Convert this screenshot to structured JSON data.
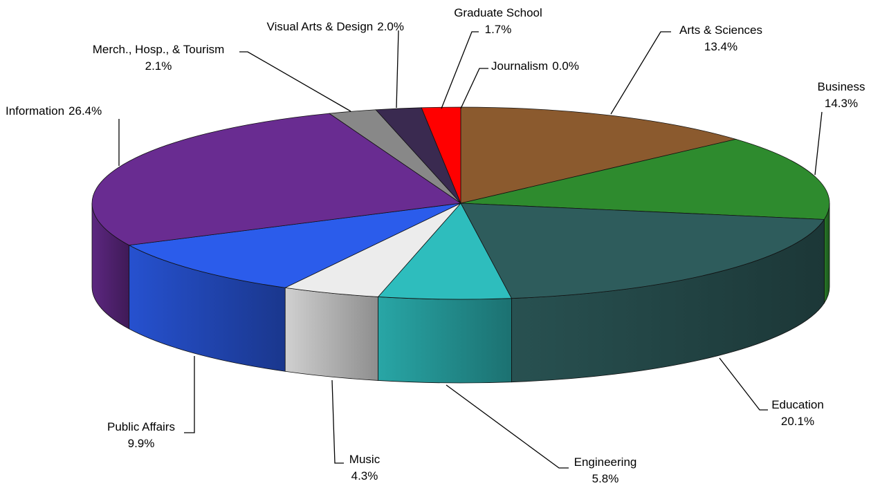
{
  "chart_data": {
    "type": "pie3d",
    "labels": [
      "Journalism",
      "Arts & Sciences",
      "Business",
      "Education",
      "Engineering",
      "Music",
      "Public Affairs",
      "Information",
      "Merch., Hosp., & Tourism",
      "Visual Arts & Design",
      "Graduate School"
    ],
    "values": [
      0.0,
      13.4,
      14.3,
      20.1,
      5.8,
      4.3,
      9.9,
      26.4,
      2.1,
      2.0,
      1.7
    ],
    "value_labels": [
      "0.0%",
      "13.4%",
      "14.3%",
      "20.1%",
      "5.8%",
      "4.3%",
      "9.9%",
      "26.4%",
      "2.1%",
      "2.0%",
      "1.7%"
    ],
    "colors": [
      "#ffcc00",
      "#8b5a2e",
      "#2e8b2e",
      "#2e5c5c",
      "#2ebdbd",
      "#ececec",
      "#2b5ceb",
      "#692c91",
      "#888888",
      "#3a2a50",
      "#ff0000"
    ]
  }
}
